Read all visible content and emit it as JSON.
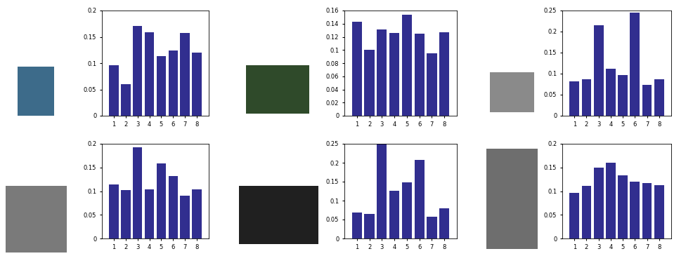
{
  "chart_data": [
    {
      "type": "bar",
      "x": [
        1,
        2,
        3,
        4,
        5,
        6,
        7,
        8
      ],
      "values": [
        0.096,
        0.06,
        0.171,
        0.159,
        0.114,
        0.124,
        0.157,
        0.12
      ],
      "color": "#312e8f",
      "xlim": [
        0,
        9
      ],
      "xticks": [
        1,
        2,
        3,
        4,
        5,
        6,
        7,
        8
      ],
      "ylim": [
        0,
        0.2
      ],
      "yticks": [
        0,
        0.05,
        0.1,
        0.15,
        0.2
      ]
    },
    {
      "type": "bar",
      "x": [
        1,
        2,
        3,
        4,
        5,
        6,
        7,
        8
      ],
      "values": [
        0.143,
        0.1,
        0.131,
        0.126,
        0.154,
        0.125,
        0.095,
        0.127
      ],
      "color": "#312e8f",
      "xlim": [
        0,
        9
      ],
      "xticks": [
        1,
        2,
        3,
        4,
        5,
        6,
        7,
        8
      ],
      "ylim": [
        0,
        0.16
      ],
      "yticks": [
        0,
        0.02,
        0.04,
        0.06,
        0.08,
        0.1,
        0.12,
        0.14,
        0.16
      ]
    },
    {
      "type": "bar",
      "x": [
        1,
        2,
        3,
        4,
        5,
        6,
        7,
        8
      ],
      "values": [
        0.082,
        0.087,
        0.215,
        0.111,
        0.097,
        0.245,
        0.073,
        0.087
      ],
      "color": "#312e8f",
      "xlim": [
        0,
        9
      ],
      "xticks": [
        1,
        2,
        3,
        4,
        5,
        6,
        7,
        8
      ],
      "ylim": [
        0,
        0.25
      ],
      "yticks": [
        0,
        0.05,
        0.1,
        0.15,
        0.2,
        0.25
      ]
    },
    {
      "type": "bar",
      "x": [
        1,
        2,
        3,
        4,
        5,
        6,
        7,
        8
      ],
      "values": [
        0.114,
        0.102,
        0.192,
        0.104,
        0.159,
        0.132,
        0.09,
        0.103
      ],
      "color": "#312e8f",
      "xlim": [
        0,
        9
      ],
      "xticks": [
        1,
        2,
        3,
        4,
        5,
        6,
        7,
        8
      ],
      "ylim": [
        0,
        0.2
      ],
      "yticks": [
        0,
        0.05,
        0.1,
        0.15,
        0.2
      ]
    },
    {
      "type": "bar",
      "x": [
        1,
        2,
        3,
        4,
        5,
        6,
        7,
        8
      ],
      "values": [
        0.068,
        0.064,
        0.25,
        0.126,
        0.149,
        0.208,
        0.058,
        0.079
      ],
      "color": "#312e8f",
      "xlim": [
        0,
        9
      ],
      "xticks": [
        1,
        2,
        3,
        4,
        5,
        6,
        7,
        8
      ],
      "ylim": [
        0,
        0.25
      ],
      "yticks": [
        0,
        0.05,
        0.1,
        0.15,
        0.2,
        0.25
      ]
    },
    {
      "type": "bar",
      "x": [
        1,
        2,
        3,
        4,
        5,
        6,
        7,
        8
      ],
      "values": [
        0.097,
        0.111,
        0.149,
        0.16,
        0.133,
        0.12,
        0.117,
        0.112
      ],
      "color": "#312e8f",
      "xlim": [
        0,
        9
      ],
      "xticks": [
        1,
        2,
        3,
        4,
        5,
        6,
        7,
        8
      ],
      "ylim": [
        0,
        0.2
      ],
      "yticks": [
        0,
        0.05,
        0.1,
        0.15,
        0.2
      ]
    }
  ]
}
